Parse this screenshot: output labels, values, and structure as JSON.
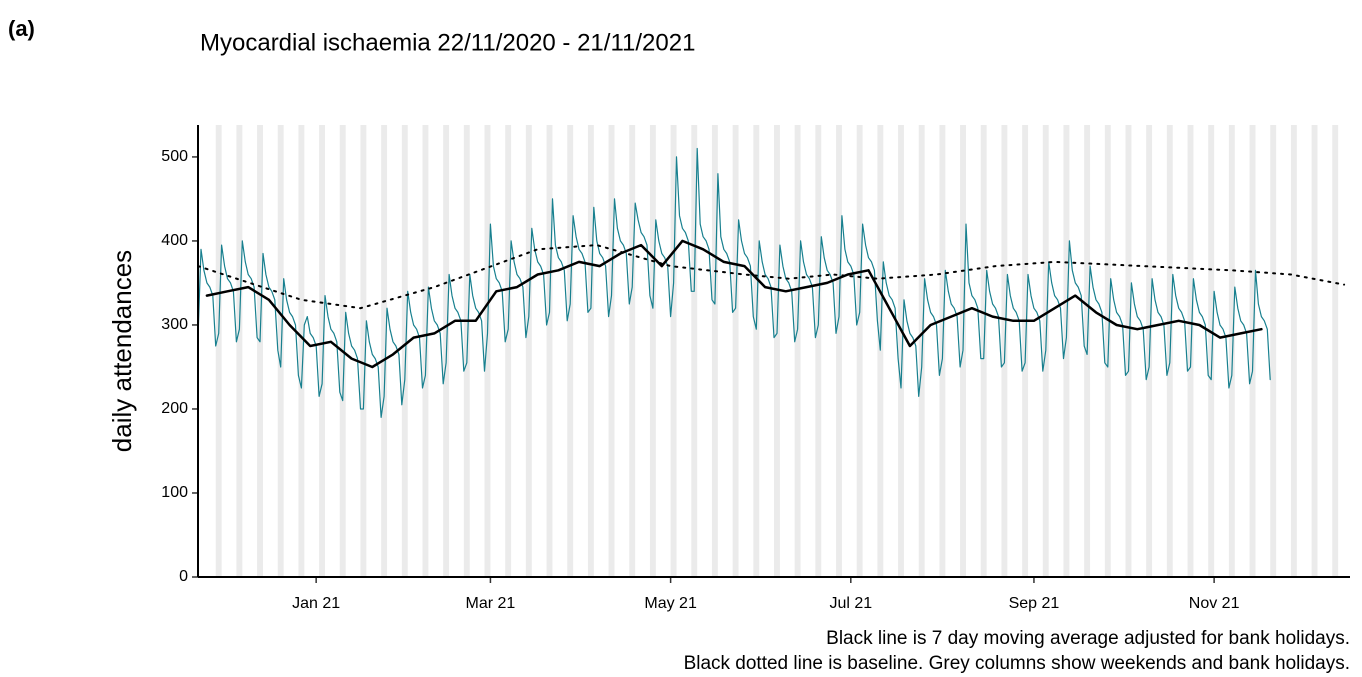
{
  "panel_label": "(a)",
  "chart_data": {
    "type": "line",
    "title": "Myocardial ischaemia 22/11/2020 - 21/11/2021",
    "ylabel": "daily attendances",
    "notes": [
      "Black line is 7 day moving average adjusted for bank holidays.",
      "Black dotted line is baseline. Grey columns show weekends and bank holidays."
    ],
    "xlim": [
      0,
      390
    ],
    "ylim": [
      0,
      538
    ],
    "xticks": [
      {
        "value": 40,
        "label": "Jan 21"
      },
      {
        "value": 99,
        "label": "Mar 21"
      },
      {
        "value": 160,
        "label": "May 21"
      },
      {
        "value": 221,
        "label": "Jul 21"
      },
      {
        "value": 283,
        "label": "Sep 21"
      },
      {
        "value": 344,
        "label": "Nov 21"
      }
    ],
    "yticks": [
      0,
      100,
      200,
      300,
      400,
      500
    ],
    "shade_color": "#ebebeb",
    "shaded_columns": [
      6,
      13,
      20,
      27,
      34,
      41,
      48,
      55,
      62,
      69,
      76,
      83,
      90,
      97,
      104,
      111,
      118,
      125,
      132,
      139,
      146,
      153,
      160,
      167,
      174,
      181,
      188,
      195,
      202,
      209,
      216,
      223,
      230,
      237,
      244,
      251,
      258,
      265,
      272,
      279,
      286,
      293,
      300,
      307,
      314,
      321,
      328,
      335,
      342,
      349,
      356,
      363,
      370,
      377,
      384
    ],
    "x": [
      0,
      1,
      2,
      3,
      4,
      5,
      6,
      7,
      8,
      9,
      10,
      11,
      12,
      13,
      14,
      15,
      16,
      17,
      18,
      19,
      20,
      21,
      22,
      23,
      24,
      25,
      26,
      27,
      28,
      29,
      30,
      31,
      32,
      33,
      34,
      35,
      36,
      37,
      38,
      39,
      40,
      41,
      42,
      43,
      44,
      45,
      46,
      47,
      48,
      49,
      50,
      51,
      52,
      53,
      54,
      55,
      56,
      57,
      58,
      59,
      60,
      61,
      62,
      63,
      64,
      65,
      66,
      67,
      68,
      69,
      70,
      71,
      72,
      73,
      74,
      75,
      76,
      77,
      78,
      79,
      80,
      81,
      82,
      83,
      84,
      85,
      86,
      87,
      88,
      89,
      90,
      91,
      92,
      93,
      94,
      95,
      96,
      97,
      98,
      99,
      100,
      101,
      102,
      103,
      104,
      105,
      106,
      107,
      108,
      109,
      110,
      111,
      112,
      113,
      114,
      115,
      116,
      117,
      118,
      119,
      120,
      121,
      122,
      123,
      124,
      125,
      126,
      127,
      128,
      129,
      130,
      131,
      132,
      133,
      134,
      135,
      136,
      137,
      138,
      139,
      140,
      141,
      142,
      143,
      144,
      145,
      146,
      147,
      148,
      149,
      150,
      151,
      152,
      153,
      154,
      155,
      156,
      157,
      158,
      159,
      160,
      161,
      162,
      163,
      164,
      165,
      166,
      167,
      168,
      169,
      170,
      171,
      172,
      173,
      174,
      175,
      176,
      177,
      178,
      179,
      180,
      181,
      182,
      183,
      184,
      185,
      186,
      187,
      188,
      189,
      190,
      191,
      192,
      193,
      194,
      195,
      196,
      197,
      198,
      199,
      200,
      201,
      202,
      203,
      204,
      205,
      206,
      207,
      208,
      209,
      210,
      211,
      212,
      213,
      214,
      215,
      216,
      217,
      218,
      219,
      220,
      221,
      222,
      223,
      224,
      225,
      226,
      227,
      228,
      229,
      230,
      231,
      232,
      233,
      234,
      235,
      236,
      237,
      238,
      239,
      240,
      241,
      242,
      243,
      244,
      245,
      246,
      247,
      248,
      249,
      250,
      251,
      252,
      253,
      254,
      255,
      256,
      257,
      258,
      259,
      260,
      261,
      262,
      263,
      264,
      265,
      266,
      267,
      268,
      269,
      270,
      271,
      272,
      273,
      274,
      275,
      276,
      277,
      278,
      279,
      280,
      281,
      282,
      283,
      284,
      285,
      286,
      287,
      288,
      289,
      290,
      291,
      292,
      293,
      294,
      295,
      296,
      297,
      298,
      299,
      300,
      301,
      302,
      303,
      304,
      305,
      306,
      307,
      308,
      309,
      310,
      311,
      312,
      313,
      314,
      315,
      316,
      317,
      318,
      319,
      320,
      321,
      322,
      323,
      324,
      325,
      326,
      327,
      328,
      329,
      330,
      331,
      332,
      333,
      334,
      335,
      336,
      337,
      338,
      339,
      340,
      341,
      342,
      343,
      344,
      345,
      346,
      347,
      348,
      349,
      350,
      351,
      352,
      353,
      354,
      355,
      356,
      357,
      358,
      359,
      360,
      361,
      362,
      363
    ],
    "series": [
      {
        "name": "daily",
        "color": "#18808f",
        "width": 1.2,
        "dash": "none",
        "values": [
          285,
          390,
          365,
          350,
          345,
          335,
          275,
          290,
          395,
          370,
          355,
          350,
          340,
          280,
          295,
          400,
          375,
          360,
          355,
          345,
          285,
          280,
          385,
          360,
          345,
          340,
          330,
          270,
          250,
          355,
          330,
          315,
          310,
          300,
          240,
          225,
          300,
          310,
          290,
          285,
          275,
          215,
          230,
          335,
          310,
          295,
          290,
          280,
          220,
          210,
          315,
          290,
          275,
          270,
          260,
          200,
          200,
          305,
          280,
          265,
          260,
          250,
          190,
          215,
          320,
          295,
          280,
          275,
          265,
          205,
          235,
          340,
          315,
          300,
          295,
          285,
          225,
          240,
          345,
          320,
          305,
          300,
          290,
          230,
          255,
          360,
          335,
          320,
          315,
          305,
          245,
          255,
          360,
          335,
          320,
          315,
          305,
          245,
          290,
          420,
          370,
          355,
          350,
          340,
          280,
          295,
          400,
          375,
          360,
          355,
          345,
          285,
          310,
          415,
          390,
          375,
          370,
          360,
          300,
          315,
          450,
          395,
          380,
          375,
          365,
          305,
          325,
          430,
          405,
          390,
          385,
          375,
          315,
          320,
          440,
          400,
          385,
          380,
          370,
          310,
          335,
          450,
          415,
          400,
          395,
          385,
          325,
          345,
          445,
          425,
          410,
          405,
          395,
          335,
          320,
          425,
          400,
          385,
          380,
          370,
          310,
          350,
          500,
          430,
          415,
          410,
          400,
          340,
          340,
          510,
          420,
          405,
          400,
          390,
          330,
          325,
          480,
          405,
          390,
          385,
          375,
          315,
          320,
          425,
          400,
          385,
          380,
          370,
          310,
          295,
          400,
          375,
          360,
          355,
          345,
          285,
          290,
          395,
          370,
          355,
          350,
          340,
          280,
          295,
          400,
          375,
          360,
          355,
          345,
          285,
          300,
          405,
          380,
          365,
          360,
          350,
          290,
          310,
          430,
          390,
          375,
          370,
          360,
          300,
          315,
          420,
          395,
          380,
          375,
          365,
          305,
          270,
          375,
          350,
          335,
          330,
          320,
          260,
          225,
          330,
          305,
          290,
          285,
          275,
          215,
          250,
          355,
          330,
          315,
          310,
          300,
          240,
          260,
          365,
          340,
          325,
          320,
          310,
          250,
          270,
          420,
          350,
          335,
          330,
          320,
          260,
          260,
          365,
          340,
          325,
          320,
          310,
          250,
          255,
          360,
          335,
          320,
          315,
          305,
          245,
          255,
          360,
          335,
          320,
          315,
          305,
          245,
          270,
          375,
          350,
          335,
          330,
          320,
          260,
          285,
          400,
          365,
          350,
          345,
          335,
          275,
          265,
          370,
          345,
          330,
          325,
          315,
          255,
          250,
          355,
          330,
          315,
          310,
          300,
          240,
          245,
          350,
          325,
          310,
          305,
          295,
          235,
          250,
          355,
          330,
          315,
          310,
          300,
          240,
          255,
          360,
          335,
          320,
          315,
          305,
          245,
          250,
          355,
          330,
          315,
          310,
          300,
          240,
          235,
          340,
          315,
          300,
          295,
          285,
          225,
          240,
          345,
          320,
          305,
          300,
          290,
          230,
          245,
          365,
          325,
          310,
          305,
          295,
          235
        ]
      },
      {
        "name": "moving average",
        "color": "#000000",
        "width": 2.5,
        "dash": "none",
        "x": [
          3,
          10,
          17,
          24,
          31,
          38,
          45,
          52,
          59,
          66,
          73,
          80,
          87,
          94,
          101,
          108,
          115,
          122,
          129,
          136,
          143,
          150,
          157,
          164,
          171,
          178,
          185,
          192,
          199,
          206,
          213,
          220,
          227,
          234,
          241,
          248,
          255,
          262,
          269,
          276,
          283,
          290,
          297,
          304,
          311,
          318,
          325,
          332,
          339,
          346,
          353,
          360
        ],
        "values": [
          335,
          340,
          345,
          330,
          300,
          275,
          280,
          260,
          250,
          265,
          285,
          290,
          305,
          305,
          340,
          345,
          360,
          365,
          375,
          370,
          385,
          395,
          370,
          400,
          390,
          375,
          370,
          345,
          340,
          345,
          350,
          360,
          365,
          320,
          275,
          300,
          310,
          320,
          310,
          305,
          305,
          320,
          335,
          315,
          300,
          295,
          300,
          305,
          300,
          285,
          290,
          295
        ]
      },
      {
        "name": "baseline",
        "color": "#000000",
        "width": 2,
        "dash": "2 6",
        "x": [
          0,
          35,
          55,
          80,
          115,
          135,
          160,
          185,
          200,
          215,
          230,
          250,
          270,
          290,
          320,
          350,
          370,
          388
        ],
        "values": [
          370,
          330,
          320,
          345,
          390,
          395,
          370,
          360,
          355,
          360,
          355,
          360,
          370,
          375,
          370,
          365,
          360,
          348
        ]
      }
    ]
  }
}
